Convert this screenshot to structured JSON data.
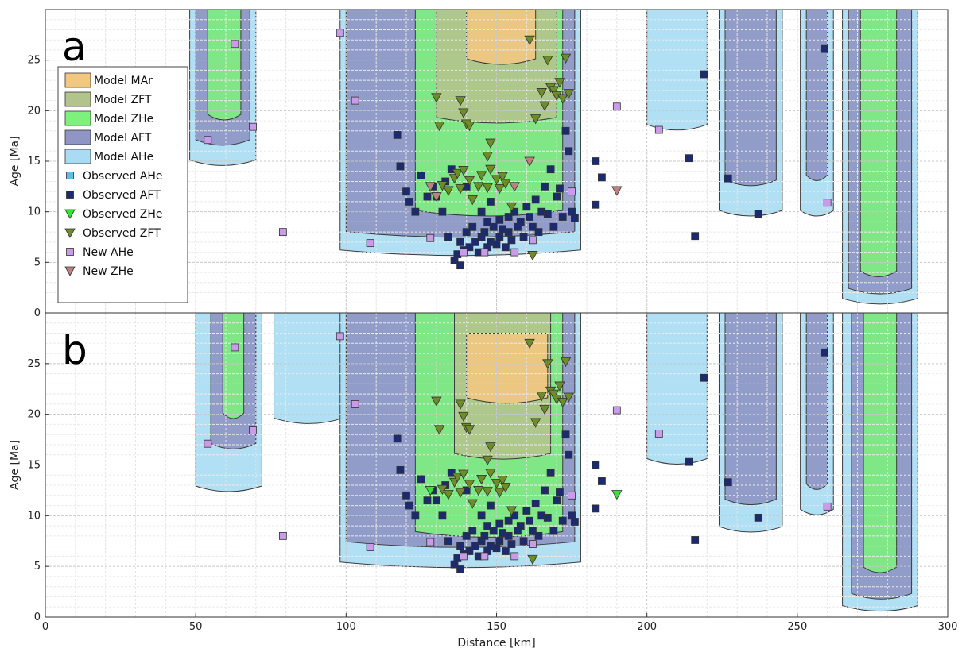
{
  "figure": {
    "x_axis_label": "Distance [km]",
    "y_axis_label": "Age [Ma]"
  },
  "legend": {
    "items": [
      {
        "label": "Model MAr",
        "kind": "patch",
        "color": "#f2c77f"
      },
      {
        "label": "Model ZFT",
        "kind": "patch",
        "color": "#b2c48c"
      },
      {
        "label": "Model ZHe",
        "kind": "patch",
        "color": "#7ef07e"
      },
      {
        "label": "Model AFT",
        "kind": "patch",
        "color": "#8f95c4"
      },
      {
        "label": "Model AHe",
        "kind": "patch",
        "color": "#a9dcf2"
      },
      {
        "label": "Observed AHe",
        "kind": "square",
        "color": "#5bc0e8"
      },
      {
        "label": "Observed AFT",
        "kind": "square",
        "color": "#1c2a6e"
      },
      {
        "label": "Observed ZHe",
        "kind": "triangle",
        "color": "#2ee82e"
      },
      {
        "label": "Observed ZFT",
        "kind": "triangle",
        "color": "#6e8c28"
      },
      {
        "label": "New AHe",
        "kind": "square",
        "color": "#c99be8"
      },
      {
        "label": "New ZHe",
        "kind": "triangle",
        "color": "#c08080"
      }
    ]
  },
  "chart_data": [
    {
      "panel": "a",
      "type": "scatter",
      "xlabel": "",
      "ylabel": "Age [Ma]",
      "xlim": [
        0,
        300
      ],
      "ylim": [
        0,
        30
      ],
      "xticks": [
        0,
        50,
        100,
        150,
        200,
        250,
        300
      ],
      "yticks": [
        0,
        5,
        10,
        15,
        20,
        25
      ],
      "grid": true,
      "legend_position": "left",
      "series": [
        {
          "name": "Observed AFT",
          "points": [
            [
              117,
              17.6
            ],
            [
              118,
              14.5
            ],
            [
              120,
              12
            ],
            [
              121,
              11
            ],
            [
              123,
              10
            ],
            [
              125,
              13.6
            ],
            [
              127,
              11.5
            ],
            [
              129,
              12.5
            ],
            [
              130,
              11.5
            ],
            [
              132,
              10
            ],
            [
              133,
              13
            ],
            [
              134,
              7.5
            ],
            [
              135,
              14.2
            ],
            [
              136,
              5.2
            ],
            [
              137,
              5.8
            ],
            [
              138,
              4.7
            ],
            [
              138,
              7
            ],
            [
              139,
              6.2
            ],
            [
              140,
              8
            ],
            [
              140,
              12.5
            ],
            [
              141,
              6.5
            ],
            [
              142,
              8.5
            ],
            [
              143,
              7
            ],
            [
              144,
              6
            ],
            [
              145,
              7.5
            ],
            [
              145,
              10
            ],
            [
              146,
              8
            ],
            [
              147,
              6.5
            ],
            [
              147,
              9
            ],
            [
              148,
              7
            ],
            [
              148,
              11
            ],
            [
              149,
              8.5
            ],
            [
              150,
              6.8
            ],
            [
              151,
              9.2
            ],
            [
              151,
              7.5
            ],
            [
              152,
              8.3
            ],
            [
              153,
              6.5
            ],
            [
              154,
              8
            ],
            [
              154,
              9.5
            ],
            [
              155,
              7.2
            ],
            [
              156,
              10
            ],
            [
              157,
              8.5
            ],
            [
              158,
              9
            ],
            [
              159,
              7.5
            ],
            [
              160,
              10.5
            ],
            [
              161,
              9.5
            ],
            [
              162,
              8.5
            ],
            [
              163,
              11.2
            ],
            [
              164,
              8
            ],
            [
              165,
              10
            ],
            [
              166,
              12.5
            ],
            [
              167,
              9.8
            ],
            [
              168,
              14.2
            ],
            [
              169,
              8.5
            ],
            [
              170,
              11.5
            ],
            [
              171,
              12.3
            ],
            [
              172,
              9.5
            ],
            [
              173,
              18
            ],
            [
              174,
              16
            ],
            [
              175,
              10
            ],
            [
              176,
              9.4
            ],
            [
              183,
              15
            ],
            [
              183,
              10.7
            ],
            [
              185,
              13.4
            ],
            [
              214,
              15.3
            ],
            [
              216,
              7.6
            ],
            [
              219,
              23.6
            ],
            [
              227,
              13.3
            ],
            [
              237,
              9.8
            ],
            [
              259,
              26.1
            ]
          ]
        },
        {
          "name": "Observed ZFT",
          "points": [
            [
              130,
              21.3
            ],
            [
              131,
              18.5
            ],
            [
              138,
              21
            ],
            [
              139,
              19.8
            ],
            [
              140,
              18.7
            ],
            [
              141,
              18.5
            ],
            [
              147,
              15.5
            ],
            [
              148,
              16.8
            ],
            [
              161,
              27
            ],
            [
              163,
              19.2
            ],
            [
              165,
              21.8
            ],
            [
              166,
              20.5
            ],
            [
              167,
              25
            ],
            [
              168,
              22.3
            ],
            [
              169,
              22
            ],
            [
              170,
              21.5
            ],
            [
              171,
              22.8
            ],
            [
              172,
              21.2
            ],
            [
              173,
              25.2
            ],
            [
              174,
              21.7
            ],
            [
              162,
              5.7
            ],
            [
              132,
              12.6
            ],
            [
              134,
              12.1
            ],
            [
              136,
              13.3
            ],
            [
              137,
              13.8
            ],
            [
              138,
              12.3
            ],
            [
              139,
              14.1
            ],
            [
              141,
              13.1
            ],
            [
              142,
              11.2
            ],
            [
              144,
              12.5
            ],
            [
              145,
              13.6
            ],
            [
              147,
              12.4
            ],
            [
              148,
              14.2
            ],
            [
              150,
              13.2
            ],
            [
              151,
              12.3
            ],
            [
              152,
              13.5
            ],
            [
              153,
              12.8
            ],
            [
              155,
              10.5
            ]
          ]
        },
        {
          "name": "New AHe",
          "points": [
            [
              54,
              17.1
            ],
            [
              63,
              26.6
            ],
            [
              69,
              18.4
            ],
            [
              79,
              8
            ],
            [
              98,
              27.7
            ],
            [
              103,
              21
            ],
            [
              108,
              6.9
            ],
            [
              128,
              7.4
            ],
            [
              139,
              6
            ],
            [
              146,
              6
            ],
            [
              156,
              6
            ],
            [
              162,
              7.2
            ],
            [
              175,
              12
            ],
            [
              190,
              20.4
            ],
            [
              204,
              18.1
            ],
            [
              260,
              10.9
            ]
          ]
        },
        {
          "name": "New ZHe",
          "points": [
            [
              128,
              12.5
            ],
            [
              130,
              11.5
            ],
            [
              156,
              12.5
            ],
            [
              161,
              15
            ],
            [
              190,
              12.1
            ]
          ]
        }
      ]
    },
    {
      "panel": "b",
      "type": "scatter",
      "xlabel": "Distance [km]",
      "ylabel": "Age [Ma]",
      "xlim": [
        0,
        300
      ],
      "ylim": [
        0,
        30
      ],
      "xticks": [
        0,
        50,
        100,
        150,
        200,
        250,
        300
      ],
      "yticks": [
        0,
        5,
        10,
        15,
        20,
        25
      ],
      "grid": true,
      "series": [
        {
          "name": "Observed AFT",
          "points": [
            [
              117,
              17.6
            ],
            [
              118,
              14.5
            ],
            [
              120,
              12
            ],
            [
              121,
              11
            ],
            [
              123,
              10
            ],
            [
              125,
              13.6
            ],
            [
              127,
              11.5
            ],
            [
              129,
              12.5
            ],
            [
              130,
              11.5
            ],
            [
              132,
              10
            ],
            [
              133,
              13
            ],
            [
              134,
              7.5
            ],
            [
              135,
              14.2
            ],
            [
              136,
              5.2
            ],
            [
              137,
              5.8
            ],
            [
              138,
              4.7
            ],
            [
              138,
              7
            ],
            [
              139,
              6.2
            ],
            [
              140,
              8
            ],
            [
              140,
              12.5
            ],
            [
              141,
              6.5
            ],
            [
              142,
              8.5
            ],
            [
              143,
              7
            ],
            [
              144,
              6
            ],
            [
              145,
              7.5
            ],
            [
              145,
              10
            ],
            [
              146,
              8
            ],
            [
              147,
              6.5
            ],
            [
              147,
              9
            ],
            [
              148,
              7
            ],
            [
              148,
              11
            ],
            [
              149,
              8.5
            ],
            [
              150,
              6.8
            ],
            [
              151,
              9.2
            ],
            [
              151,
              7.5
            ],
            [
              152,
              8.3
            ],
            [
              153,
              6.5
            ],
            [
              154,
              8
            ],
            [
              154,
              9.5
            ],
            [
              155,
              7.2
            ],
            [
              156,
              10
            ],
            [
              157,
              8.5
            ],
            [
              158,
              9
            ],
            [
              159,
              7.5
            ],
            [
              160,
              10.5
            ],
            [
              161,
              9.5
            ],
            [
              162,
              8.5
            ],
            [
              163,
              11.2
            ],
            [
              164,
              8
            ],
            [
              165,
              10
            ],
            [
              166,
              12.5
            ],
            [
              167,
              9.8
            ],
            [
              168,
              14.2
            ],
            [
              169,
              8.5
            ],
            [
              170,
              11.5
            ],
            [
              171,
              12.3
            ],
            [
              172,
              9.5
            ],
            [
              173,
              18
            ],
            [
              174,
              16
            ],
            [
              175,
              10
            ],
            [
              176,
              9.4
            ],
            [
              183,
              15
            ],
            [
              183,
              10.7
            ],
            [
              185,
              13.4
            ],
            [
              214,
              15.3
            ],
            [
              216,
              7.6
            ],
            [
              219,
              23.6
            ],
            [
              227,
              13.3
            ],
            [
              237,
              9.8
            ],
            [
              259,
              26.1
            ]
          ]
        },
        {
          "name": "Observed ZFT",
          "points": [
            [
              130,
              21.3
            ],
            [
              131,
              18.5
            ],
            [
              138,
              21
            ],
            [
              139,
              19.8
            ],
            [
              140,
              18.7
            ],
            [
              141,
              18.5
            ],
            [
              147,
              15.5
            ],
            [
              148,
              16.8
            ],
            [
              161,
              27
            ],
            [
              163,
              19.2
            ],
            [
              165,
              21.8
            ],
            [
              166,
              20.5
            ],
            [
              167,
              25
            ],
            [
              168,
              22.3
            ],
            [
              169,
              22
            ],
            [
              170,
              21.5
            ],
            [
              171,
              22.8
            ],
            [
              172,
              21.2
            ],
            [
              173,
              25.2
            ],
            [
              174,
              21.7
            ],
            [
              162,
              5.7
            ],
            [
              132,
              12.6
            ],
            [
              134,
              12.1
            ],
            [
              136,
              13.3
            ],
            [
              137,
              13.8
            ],
            [
              138,
              12.3
            ],
            [
              139,
              14.1
            ],
            [
              141,
              13.1
            ],
            [
              142,
              11.2
            ],
            [
              144,
              12.5
            ],
            [
              145,
              13.6
            ],
            [
              147,
              12.4
            ],
            [
              148,
              14.2
            ],
            [
              150,
              13.2
            ],
            [
              151,
              12.3
            ],
            [
              152,
              13.5
            ],
            [
              153,
              12.8
            ],
            [
              155,
              10.5
            ]
          ]
        },
        {
          "name": "Observed ZHe",
          "points": [
            [
              128,
              12.5
            ],
            [
              190,
              12.1
            ]
          ]
        },
        {
          "name": "New AHe",
          "points": [
            [
              54,
              17.1
            ],
            [
              63,
              26.6
            ],
            [
              69,
              18.4
            ],
            [
              79,
              8
            ],
            [
              98,
              27.7
            ],
            [
              103,
              21
            ],
            [
              108,
              6.9
            ],
            [
              128,
              7.4
            ],
            [
              139,
              6
            ],
            [
              146,
              6
            ],
            [
              156,
              6
            ],
            [
              162,
              7.2
            ],
            [
              175,
              12
            ],
            [
              190,
              20.4
            ],
            [
              204,
              18.1
            ],
            [
              260,
              10.9
            ]
          ]
        }
      ]
    }
  ]
}
